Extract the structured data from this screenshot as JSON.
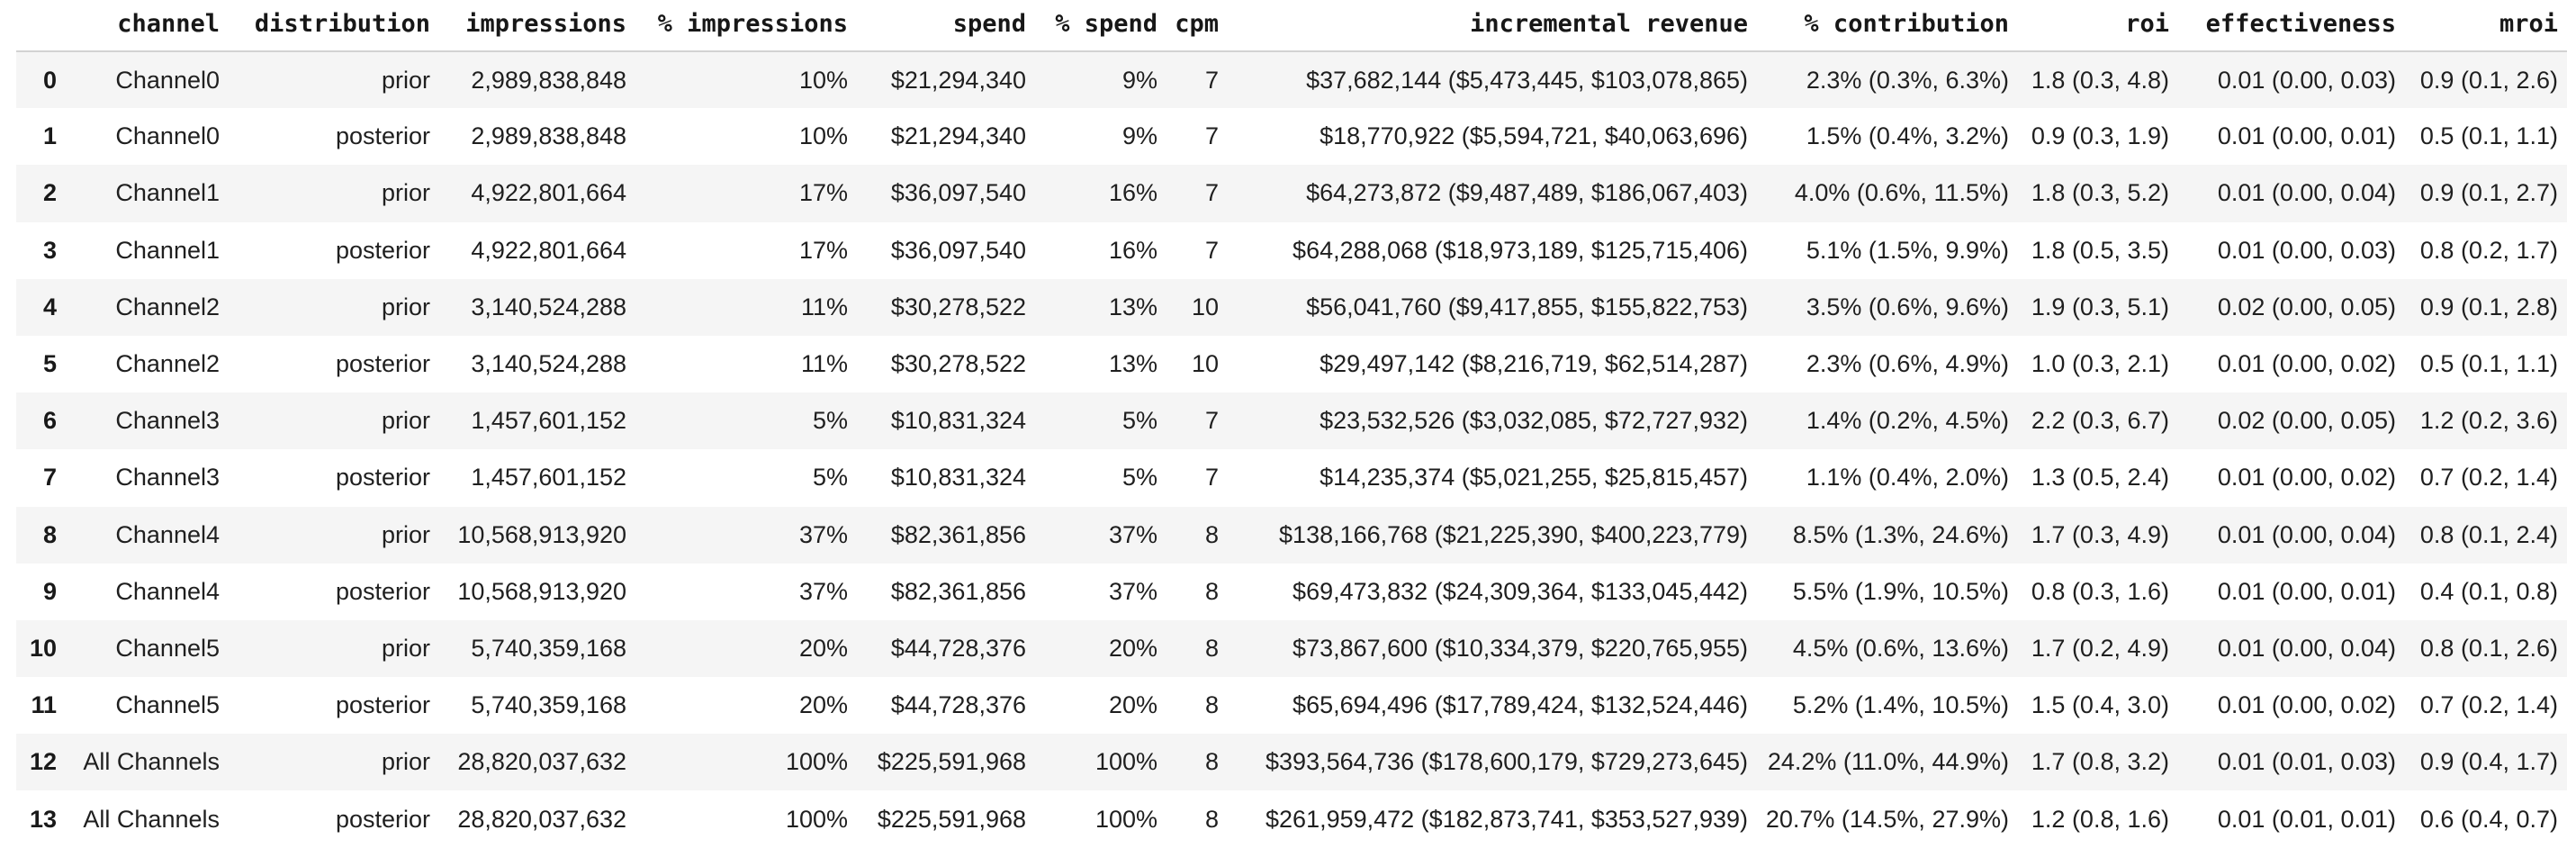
{
  "colors": {
    "background": "#ffffff",
    "row_stripe": "#f5f5f5",
    "header_border": "#d2d2d2",
    "text": "#1f1f1f"
  },
  "chart_data": {
    "type": "table",
    "title": "",
    "columns": [
      "",
      "channel",
      "distribution",
      "impressions",
      "% impressions",
      "spend",
      "% spend",
      "cpm",
      "incremental revenue",
      "% contribution",
      "roi",
      "effectiveness",
      "mroi"
    ],
    "rows": [
      [
        "0",
        "Channel0",
        "prior",
        "2,989,838,848",
        "10%",
        "$21,294,340",
        "9%",
        "7",
        "$37,682,144 ($5,473,445, $103,078,865)",
        "2.3% (0.3%, 6.3%)",
        "1.8 (0.3, 4.8)",
        "0.01 (0.00, 0.03)",
        "0.9 (0.1, 2.6)"
      ],
      [
        "1",
        "Channel0",
        "posterior",
        "2,989,838,848",
        "10%",
        "$21,294,340",
        "9%",
        "7",
        "$18,770,922 ($5,594,721, $40,063,696)",
        "1.5% (0.4%, 3.2%)",
        "0.9 (0.3, 1.9)",
        "0.01 (0.00, 0.01)",
        "0.5 (0.1, 1.1)"
      ],
      [
        "2",
        "Channel1",
        "prior",
        "4,922,801,664",
        "17%",
        "$36,097,540",
        "16%",
        "7",
        "$64,273,872 ($9,487,489, $186,067,403)",
        "4.0% (0.6%, 11.5%)",
        "1.8 (0.3, 5.2)",
        "0.01 (0.00, 0.04)",
        "0.9 (0.1, 2.7)"
      ],
      [
        "3",
        "Channel1",
        "posterior",
        "4,922,801,664",
        "17%",
        "$36,097,540",
        "16%",
        "7",
        "$64,288,068 ($18,973,189, $125,715,406)",
        "5.1% (1.5%, 9.9%)",
        "1.8 (0.5, 3.5)",
        "0.01 (0.00, 0.03)",
        "0.8 (0.2, 1.7)"
      ],
      [
        "4",
        "Channel2",
        "prior",
        "3,140,524,288",
        "11%",
        "$30,278,522",
        "13%",
        "10",
        "$56,041,760 ($9,417,855, $155,822,753)",
        "3.5% (0.6%, 9.6%)",
        "1.9 (0.3, 5.1)",
        "0.02 (0.00, 0.05)",
        "0.9 (0.1, 2.8)"
      ],
      [
        "5",
        "Channel2",
        "posterior",
        "3,140,524,288",
        "11%",
        "$30,278,522",
        "13%",
        "10",
        "$29,497,142 ($8,216,719, $62,514,287)",
        "2.3% (0.6%, 4.9%)",
        "1.0 (0.3, 2.1)",
        "0.01 (0.00, 0.02)",
        "0.5 (0.1, 1.1)"
      ],
      [
        "6",
        "Channel3",
        "prior",
        "1,457,601,152",
        "5%",
        "$10,831,324",
        "5%",
        "7",
        "$23,532,526 ($3,032,085, $72,727,932)",
        "1.4% (0.2%, 4.5%)",
        "2.2 (0.3, 6.7)",
        "0.02 (0.00, 0.05)",
        "1.2 (0.2, 3.6)"
      ],
      [
        "7",
        "Channel3",
        "posterior",
        "1,457,601,152",
        "5%",
        "$10,831,324",
        "5%",
        "7",
        "$14,235,374 ($5,021,255, $25,815,457)",
        "1.1% (0.4%, 2.0%)",
        "1.3 (0.5, 2.4)",
        "0.01 (0.00, 0.02)",
        "0.7 (0.2, 1.4)"
      ],
      [
        "8",
        "Channel4",
        "prior",
        "10,568,913,920",
        "37%",
        "$82,361,856",
        "37%",
        "8",
        "$138,166,768 ($21,225,390, $400,223,779)",
        "8.5% (1.3%, 24.6%)",
        "1.7 (0.3, 4.9)",
        "0.01 (0.00, 0.04)",
        "0.8 (0.1, 2.4)"
      ],
      [
        "9",
        "Channel4",
        "posterior",
        "10,568,913,920",
        "37%",
        "$82,361,856",
        "37%",
        "8",
        "$69,473,832 ($24,309,364, $133,045,442)",
        "5.5% (1.9%, 10.5%)",
        "0.8 (0.3, 1.6)",
        "0.01 (0.00, 0.01)",
        "0.4 (0.1, 0.8)"
      ],
      [
        "10",
        "Channel5",
        "prior",
        "5,740,359,168",
        "20%",
        "$44,728,376",
        "20%",
        "8",
        "$73,867,600 ($10,334,379, $220,765,955)",
        "4.5% (0.6%, 13.6%)",
        "1.7 (0.2, 4.9)",
        "0.01 (0.00, 0.04)",
        "0.8 (0.1, 2.6)"
      ],
      [
        "11",
        "Channel5",
        "posterior",
        "5,740,359,168",
        "20%",
        "$44,728,376",
        "20%",
        "8",
        "$65,694,496 ($17,789,424, $132,524,446)",
        "5.2% (1.4%, 10.5%)",
        "1.5 (0.4, 3.0)",
        "0.01 (0.00, 0.02)",
        "0.7 (0.2, 1.4)"
      ],
      [
        "12",
        "All Channels",
        "prior",
        "28,820,037,632",
        "100%",
        "$225,591,968",
        "100%",
        "8",
        "$393,564,736 ($178,600,179, $729,273,645)",
        "24.2% (11.0%, 44.9%)",
        "1.7 (0.8, 3.2)",
        "0.01 (0.01, 0.03)",
        "0.9 (0.4, 1.7)"
      ],
      [
        "13",
        "All Channels",
        "posterior",
        "28,820,037,632",
        "100%",
        "$225,591,968",
        "100%",
        "8",
        "$261,959,472 ($182,873,741, $353,527,939)",
        "20.7% (14.5%, 27.9%)",
        "1.2 (0.8, 1.6)",
        "0.01 (0.01, 0.01)",
        "0.6 (0.4, 0.7)"
      ]
    ],
    "layout": {
      "row_striping": "even data rows shaded",
      "alignment": "all columns right-aligned",
      "header_style": "bold monospace"
    }
  }
}
